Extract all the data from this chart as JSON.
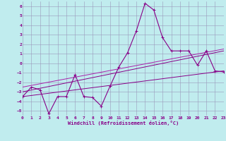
{
  "xlabel": "Windchill (Refroidissement éolien,°C)",
  "xlim": [
    0,
    23
  ],
  "ylim": [
    -5.5,
    6.5
  ],
  "yticks": [
    6,
    5,
    4,
    3,
    2,
    1,
    0,
    -1,
    -2,
    -3,
    -4,
    -5
  ],
  "xticks": [
    0,
    1,
    2,
    3,
    4,
    5,
    6,
    7,
    8,
    9,
    10,
    11,
    12,
    13,
    14,
    15,
    16,
    17,
    18,
    19,
    20,
    21,
    22,
    23
  ],
  "background_color": "#c0ecee",
  "grid_color": "#9999bb",
  "line_color": "#880088",
  "line_color2": "#aa22aa",
  "font_color": "#880088",
  "series1_x": [
    0,
    1,
    2,
    3,
    4,
    5,
    6,
    7,
    8,
    9,
    10,
    11,
    12,
    13,
    14,
    15,
    16,
    17,
    18,
    19,
    20,
    21,
    22,
    23
  ],
  "series1_y": [
    -3.5,
    -2.5,
    -2.8,
    -5.3,
    -3.5,
    -3.5,
    -1.2,
    -3.5,
    -3.6,
    -4.5,
    -2.4,
    -0.4,
    1.1,
    3.4,
    6.3,
    5.6,
    2.7,
    1.3,
    1.3,
    1.3,
    -0.2,
    1.3,
    -0.8,
    -0.9
  ],
  "series2_x": [
    0,
    23
  ],
  "series2_y": [
    -3.5,
    -0.8
  ],
  "series3_x": [
    0,
    23
  ],
  "series3_y": [
    -3.0,
    1.3
  ],
  "series4_x": [
    0,
    23
  ],
  "series4_y": [
    -2.5,
    1.5
  ]
}
